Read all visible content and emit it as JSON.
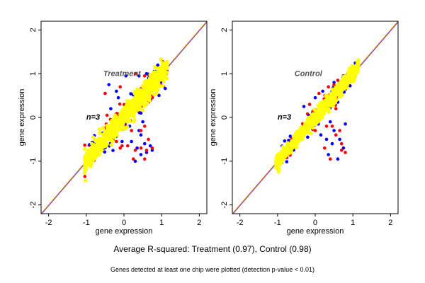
{
  "chart_data": [
    {
      "type": "scatter",
      "title": "Treatment",
      "annotation": "n=3",
      "xlabel": "gene expression",
      "ylabel": "gene expression",
      "xlim": [
        -2.2,
        2.2
      ],
      "ylim": [
        -2.2,
        2.2
      ],
      "xticks": [
        "-2",
        "-1",
        "0",
        "1",
        "2"
      ],
      "yticks": [
        "-2",
        "-1",
        "0",
        "1",
        "2"
      ],
      "grid": false,
      "reference_lines": [
        {
          "x": [
            -2.2,
            2.2
          ],
          "y": [
            -2.2,
            2.2
          ],
          "color": "#3a3aff"
        },
        {
          "x": [
            -2.2,
            2.2
          ],
          "y": [
            -2.2,
            2.2
          ],
          "color": "#ff7f00"
        }
      ],
      "cloud": {
        "x_range": [
          -1.05,
          1.15
        ],
        "spread": 0.12,
        "color": "#ffff00"
      },
      "series": [
        {
          "color": "#0000ff",
          "points": [
            [
              -0.4,
              0.75
            ],
            [
              -0.2,
              0.6
            ],
            [
              0.05,
              0.95
            ],
            [
              0.4,
              0.95
            ],
            [
              0.6,
              1.0
            ],
            [
              0.7,
              0.9
            ],
            [
              0.5,
              0.55
            ],
            [
              0.2,
              -0.55
            ],
            [
              0.4,
              -0.3
            ],
            [
              0.5,
              -0.1
            ],
            [
              0.55,
              -0.6
            ],
            [
              0.6,
              -0.8
            ],
            [
              0.3,
              -1.0
            ],
            [
              0.75,
              -0.75
            ],
            [
              0.15,
              -0.2
            ],
            [
              -0.3,
              -0.5
            ],
            [
              -0.05,
              -0.55
            ],
            [
              -0.35,
              0.2
            ],
            [
              0.85,
              1.05
            ],
            [
              0.35,
              -0.7
            ],
            [
              0.45,
              -0.4
            ],
            [
              0.7,
              -0.65
            ],
            [
              0.45,
              -0.85
            ],
            [
              -0.15,
              0.45
            ]
          ]
        },
        {
          "color": "#ff0000",
          "points": [
            [
              -0.5,
              0.55
            ],
            [
              -0.1,
              0.7
            ],
            [
              0.3,
              1.0
            ],
            [
              0.55,
              0.95
            ],
            [
              0.8,
              1.05
            ],
            [
              0.9,
              0.95
            ],
            [
              0.55,
              -0.2
            ],
            [
              0.65,
              -0.5
            ],
            [
              0.3,
              -0.75
            ],
            [
              0.25,
              -0.95
            ],
            [
              0.45,
              -0.7
            ],
            [
              -0.1,
              -0.7
            ],
            [
              -0.05,
              -0.65
            ],
            [
              -0.2,
              -0.55
            ],
            [
              0.6,
              -0.75
            ],
            [
              0.75,
              -0.7
            ],
            [
              0.2,
              -0.3
            ],
            [
              0.55,
              -0.95
            ],
            [
              1.1,
              1.1
            ],
            [
              -0.45,
              0.05
            ],
            [
              0.45,
              -0.3
            ],
            [
              0.1,
              -0.65
            ],
            [
              0.0,
              0.2
            ],
            [
              0.65,
              0.35
            ]
          ]
        }
      ]
    },
    {
      "type": "scatter",
      "title": "Control",
      "annotation": "n=3",
      "xlabel": "gene expression",
      "ylabel": "gene expression",
      "xlim": [
        -2.2,
        2.2
      ],
      "ylim": [
        -2.2,
        2.2
      ],
      "xticks": [
        "-2",
        "-1",
        "0",
        "1",
        "2"
      ],
      "yticks": [
        "-2",
        "-1",
        "0",
        "1",
        "2"
      ],
      "grid": false,
      "reference_lines": [
        {
          "x": [
            -2.2,
            2.2
          ],
          "y": [
            -2.2,
            2.2
          ],
          "color": "#3a3aff"
        },
        {
          "x": [
            -2.2,
            2.2
          ],
          "y": [
            -2.2,
            2.2
          ],
          "color": "#ff7f00"
        }
      ],
      "cloud": {
        "x_range": [
          -1.05,
          1.15
        ],
        "spread": 0.08,
        "color": "#ffff00"
      },
      "series": [
        {
          "color": "#0000ff",
          "points": [
            [
              -0.3,
              0.25
            ],
            [
              0.0,
              0.45
            ],
            [
              0.2,
              0.6
            ],
            [
              0.5,
              0.8
            ],
            [
              0.75,
              0.95
            ],
            [
              0.6,
              0.35
            ],
            [
              0.4,
              -0.1
            ],
            [
              0.5,
              -0.3
            ],
            [
              0.65,
              -0.5
            ],
            [
              0.3,
              -0.5
            ],
            [
              0.35,
              -0.85
            ],
            [
              0.6,
              -0.95
            ],
            [
              0.75,
              -0.7
            ],
            [
              -0.2,
              -0.45
            ],
            [
              0.8,
              -0.15
            ],
            [
              0.15,
              -0.4
            ],
            [
              0.9,
              1.0
            ],
            [
              0.45,
              -0.6
            ]
          ]
        },
        {
          "color": "#ff0000",
          "points": [
            [
              -0.15,
              0.3
            ],
            [
              0.1,
              0.55
            ],
            [
              0.35,
              0.7
            ],
            [
              0.6,
              0.85
            ],
            [
              0.55,
              0.2
            ],
            [
              0.45,
              -0.2
            ],
            [
              0.55,
              -0.4
            ],
            [
              0.7,
              -0.6
            ],
            [
              0.25,
              -0.7
            ],
            [
              0.4,
              -0.95
            ],
            [
              0.8,
              -0.8
            ],
            [
              0.65,
              -0.3
            ],
            [
              0.0,
              -0.3
            ],
            [
              0.3,
              -0.2
            ],
            [
              0.7,
              -0.75
            ]
          ]
        }
      ]
    }
  ],
  "caption": "Average R-squared: Treatment (0.97), Control (0.98)",
  "footnote": "Genes detected at least one chip were plotted (detection p-value < 0.01)"
}
